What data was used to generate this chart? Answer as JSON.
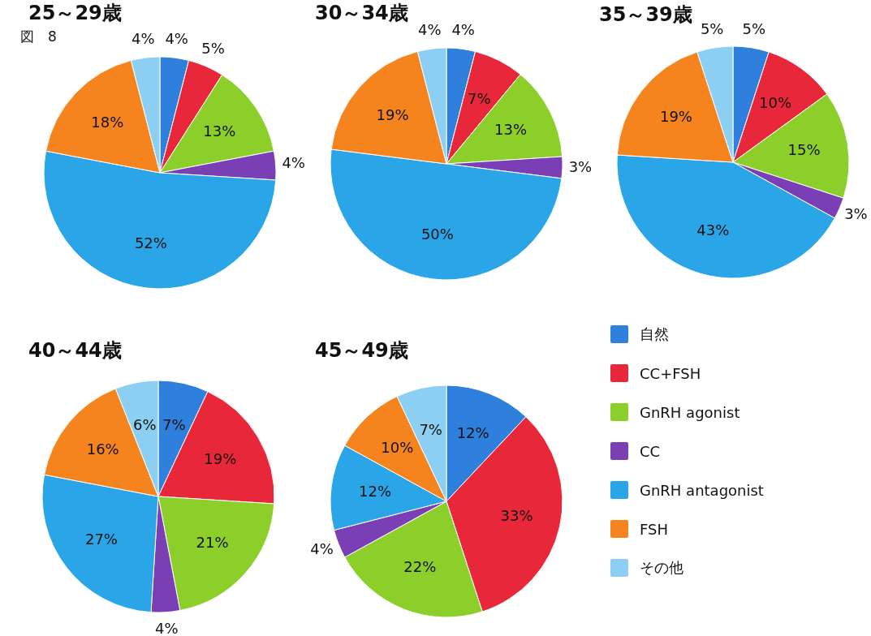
{
  "chart_data": [
    {
      "type": "pie",
      "title": "25～29歳",
      "annotations": [
        "図　8"
      ],
      "categories": [
        null,
        null,
        null,
        null,
        null,
        null,
        null
      ],
      "values": [
        4,
        5,
        13,
        4,
        52,
        18,
        4
      ],
      "value_labels": [
        "4%",
        "5%",
        "13%",
        "4%",
        "52%",
        "18%",
        "4%"
      ],
      "colors": [
        "#2f7fdc",
        "#e8283a",
        "#8ccf2a",
        "#7b3fb5",
        "#2aa6e8",
        "#f5841f",
        "#8ccff2"
      ]
    },
    {
      "type": "pie",
      "title": "30～34歳",
      "categories": [
        null,
        null,
        null,
        null,
        null,
        null,
        null
      ],
      "values": [
        4,
        7,
        13,
        3,
        50,
        19,
        4
      ],
      "value_labels": [
        "4%",
        "7%",
        "13%",
        "3%",
        "50%",
        "19%",
        "4%"
      ],
      "colors": [
        "#2f7fdc",
        "#e8283a",
        "#8ccf2a",
        "#7b3fb5",
        "#2aa6e8",
        "#f5841f",
        "#8ccff2"
      ]
    },
    {
      "type": "pie",
      "title": "35～39歳",
      "categories": [
        null,
        null,
        null,
        null,
        null,
        null,
        null
      ],
      "values": [
        5,
        10,
        15,
        3,
        43,
        19,
        5
      ],
      "value_labels": [
        "5%",
        "10%",
        "15%",
        "3%",
        "43%",
        "19%",
        "5%"
      ],
      "colors": [
        "#2f7fdc",
        "#e8283a",
        "#8ccf2a",
        "#7b3fb5",
        "#2aa6e8",
        "#f5841f",
        "#8ccff2"
      ]
    },
    {
      "type": "pie",
      "title": "40～44歳",
      "categories": [
        null,
        null,
        null,
        null,
        null,
        null,
        null
      ],
      "values": [
        7,
        19,
        21,
        4,
        27,
        16,
        6
      ],
      "value_labels": [
        "7%",
        "19%",
        "21%",
        "4%",
        "27%",
        "16%",
        "6%"
      ],
      "colors": [
        "#2f7fdc",
        "#e8283a",
        "#8ccf2a",
        "#7b3fb5",
        "#2aa6e8",
        "#f5841f",
        "#8ccff2"
      ]
    },
    {
      "type": "pie",
      "title": "45～49歳",
      "categories": [
        "自然",
        "CC+FSH",
        "GnRH agonist",
        "CC",
        "GnRH antagonist",
        "FSH",
        "その他"
      ],
      "values": [
        12,
        33,
        22,
        4,
        12,
        10,
        7
      ],
      "value_labels": [
        "12%",
        "33%",
        "22%",
        "4%",
        "12%",
        "10%",
        "7%"
      ],
      "colors": [
        "#2f7fdc",
        "#e8283a",
        "#8ccf2a",
        "#7b3fb5",
        "#2aa6e8",
        "#f5841f",
        "#8ccff2"
      ],
      "legend": "right"
    }
  ]
}
